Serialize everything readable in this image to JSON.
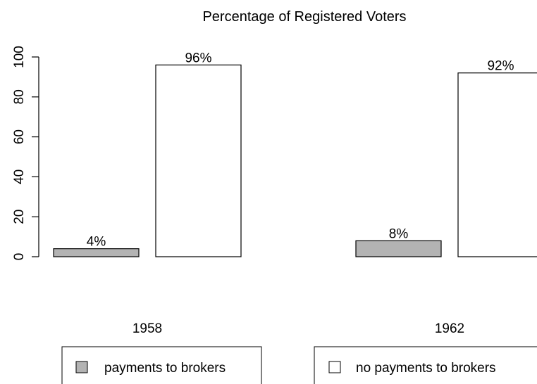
{
  "chart_data": {
    "type": "bar",
    "title": "Percentage of Registered Voters",
    "categories": [
      "1958",
      "1962"
    ],
    "series": [
      {
        "name": "payments to brokers",
        "values": [
          4,
          8
        ],
        "labels": [
          "4%",
          "8%"
        ],
        "fill": "#b3b3b3"
      },
      {
        "name": "no payments to brokers",
        "values": [
          96,
          92
        ],
        "labels": [
          "96%",
          "92%"
        ],
        "fill": "#ffffff"
      }
    ],
    "yticks": [
      "0",
      "20",
      "40",
      "60",
      "80",
      "100"
    ],
    "ylim": [
      0,
      100
    ],
    "grid": false,
    "legend": "bottom"
  }
}
